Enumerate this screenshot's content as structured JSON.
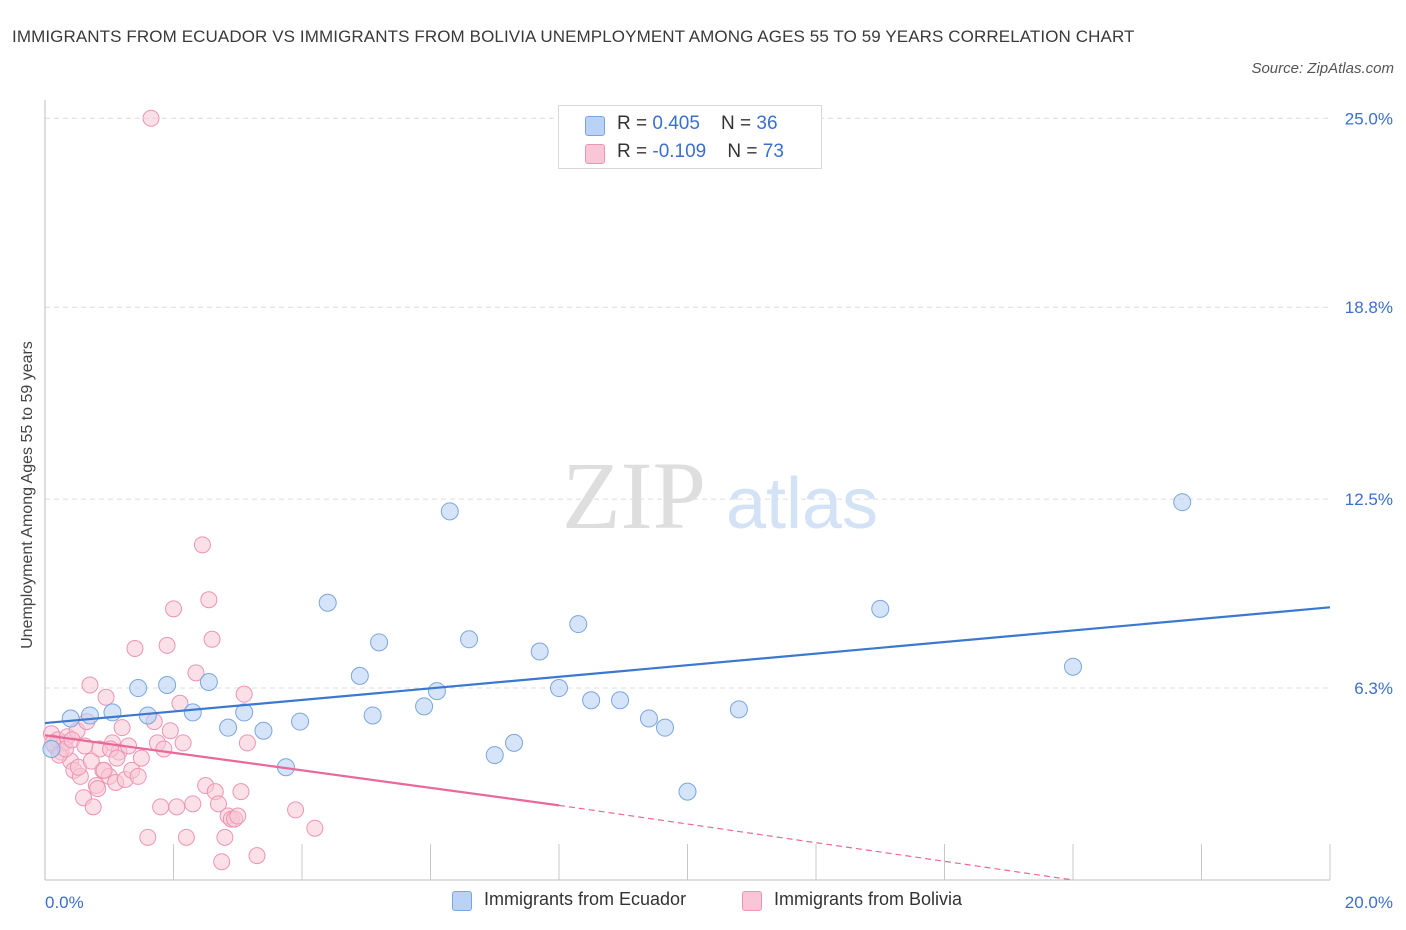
{
  "header": {
    "title": "IMMIGRANTS FROM ECUADOR VS IMMIGRANTS FROM BOLIVIA UNEMPLOYMENT AMONG AGES 55 TO 59 YEARS CORRELATION CHART",
    "source": "Source: ZipAtlas.com"
  },
  "watermark": {
    "zip": "ZIP",
    "atlas": "atlas"
  },
  "colors": {
    "ecuador_fill": "#b9d2f5",
    "ecuador_stroke": "#7aa6e0",
    "ecuador_line": "#3b78d0",
    "bolivia_fill": "#f8c6d6",
    "bolivia_stroke": "#ee94b3",
    "bolivia_line": "#e8699a",
    "tick_text": "#3b6fcf",
    "grid": "#dcdcdc"
  },
  "stats": {
    "ecuador": {
      "r_label": "R = ",
      "r_value": "0.405",
      "n_label": "N = ",
      "n_value": "36"
    },
    "bolivia": {
      "r_label": "R = ",
      "r_value": "-0.109",
      "n_label": "N = ",
      "n_value": "73"
    }
  },
  "chart_data": {
    "type": "scatter",
    "title": "IMMIGRANTS FROM ECUADOR VS IMMIGRANTS FROM BOLIVIA UNEMPLOYMENT AMONG AGES 55 TO 59 YEARS CORRELATION CHART",
    "xlabel": "",
    "ylabel": "Unemployment Among Ages 55 to 59 years",
    "xlim": [
      0,
      20
    ],
    "ylim": [
      0,
      25.6
    ],
    "x_tick_labels": [
      {
        "value": 0,
        "label": "0.0%"
      },
      {
        "value": 20,
        "label": "20.0%"
      }
    ],
    "y_tick_labels": [
      {
        "value": 6.3,
        "label": "6.3%"
      },
      {
        "value": 12.5,
        "label": "12.5%"
      },
      {
        "value": 18.8,
        "label": "18.8%"
      },
      {
        "value": 25.0,
        "label": "25.0%"
      }
    ],
    "x_minor_ticks": [
      2,
      4,
      6,
      8,
      10,
      12,
      14,
      16,
      18,
      20
    ],
    "legend_position": "bottom",
    "series": [
      {
        "name": "Immigrants from Ecuador",
        "points": [
          [
            0.1,
            4.3
          ],
          [
            0.4,
            5.3
          ],
          [
            0.7,
            5.4
          ],
          [
            1.05,
            5.5
          ],
          [
            1.45,
            6.3
          ],
          [
            1.6,
            5.4
          ],
          [
            1.9,
            6.4
          ],
          [
            2.3,
            5.5
          ],
          [
            2.55,
            6.5
          ],
          [
            2.85,
            5.0
          ],
          [
            3.1,
            5.5
          ],
          [
            3.4,
            4.9
          ],
          [
            3.75,
            3.7
          ],
          [
            3.97,
            5.2
          ],
          [
            4.4,
            9.1
          ],
          [
            4.9,
            6.7
          ],
          [
            5.1,
            5.4
          ],
          [
            5.2,
            7.8
          ],
          [
            5.9,
            5.7
          ],
          [
            6.1,
            6.2
          ],
          [
            6.3,
            12.1
          ],
          [
            6.6,
            7.9
          ],
          [
            7.0,
            4.1
          ],
          [
            7.3,
            4.5
          ],
          [
            7.7,
            7.5
          ],
          [
            8.0,
            6.3
          ],
          [
            8.3,
            8.4
          ],
          [
            8.5,
            5.9
          ],
          [
            8.95,
            5.9
          ],
          [
            9.4,
            5.3
          ],
          [
            9.65,
            5.0
          ],
          [
            10.0,
            2.9
          ],
          [
            10.8,
            5.6
          ],
          [
            13.0,
            8.9
          ],
          [
            16.0,
            7.0
          ],
          [
            17.7,
            12.4
          ]
        ],
        "trend": [
          [
            0,
            5.15
          ],
          [
            20,
            8.95
          ]
        ]
      },
      {
        "name": "Immigrants from Bolivia",
        "points": [
          [
            0.1,
            4.8
          ],
          [
            0.15,
            4.4
          ],
          [
            0.2,
            4.6
          ],
          [
            0.25,
            4.2
          ],
          [
            0.3,
            4.5
          ],
          [
            0.35,
            4.7
          ],
          [
            0.4,
            3.9
          ],
          [
            0.45,
            3.6
          ],
          [
            0.5,
            4.9
          ],
          [
            0.55,
            3.4
          ],
          [
            0.6,
            2.7
          ],
          [
            0.65,
            5.2
          ],
          [
            0.7,
            6.4
          ],
          [
            0.75,
            2.4
          ],
          [
            0.8,
            3.1
          ],
          [
            0.85,
            4.3
          ],
          [
            0.9,
            3.6
          ],
          [
            0.95,
            6.0
          ],
          [
            1.0,
            3.4
          ],
          [
            1.05,
            4.5
          ],
          [
            1.1,
            3.2
          ],
          [
            1.15,
            4.2
          ],
          [
            1.2,
            5.0
          ],
          [
            1.25,
            3.3
          ],
          [
            1.3,
            4.4
          ],
          [
            1.35,
            3.6
          ],
          [
            1.4,
            7.6
          ],
          [
            1.45,
            3.4
          ],
          [
            1.5,
            4.0
          ],
          [
            1.6,
            1.4
          ],
          [
            1.7,
            5.2
          ],
          [
            1.75,
            4.5
          ],
          [
            1.8,
            2.4
          ],
          [
            1.85,
            4.3
          ],
          [
            1.9,
            7.7
          ],
          [
            1.95,
            4.9
          ],
          [
            2.0,
            8.9
          ],
          [
            2.05,
            2.4
          ],
          [
            2.1,
            5.8
          ],
          [
            2.15,
            4.5
          ],
          [
            2.2,
            1.4
          ],
          [
            2.3,
            2.5
          ],
          [
            2.35,
            6.8
          ],
          [
            2.45,
            11.0
          ],
          [
            2.5,
            3.1
          ],
          [
            2.55,
            9.2
          ],
          [
            2.6,
            7.9
          ],
          [
            2.65,
            2.9
          ],
          [
            2.7,
            2.5
          ],
          [
            2.75,
            0.6
          ],
          [
            2.8,
            1.4
          ],
          [
            2.85,
            2.1
          ],
          [
            2.9,
            2.0
          ],
          [
            2.95,
            2.0
          ],
          [
            3.0,
            2.1
          ],
          [
            3.05,
            2.9
          ],
          [
            3.1,
            6.1
          ],
          [
            3.15,
            4.5
          ],
          [
            3.3,
            0.8
          ],
          [
            3.9,
            2.3
          ],
          [
            4.2,
            1.7
          ],
          [
            0.12,
            4.5
          ],
          [
            0.22,
            4.1
          ],
          [
            0.32,
            4.3
          ],
          [
            0.42,
            4.6
          ],
          [
            0.52,
            3.7
          ],
          [
            0.62,
            4.4
          ],
          [
            0.72,
            3.9
          ],
          [
            0.82,
            3.0
          ],
          [
            0.92,
            3.6
          ],
          [
            1.02,
            4.3
          ],
          [
            1.12,
            4.0
          ],
          [
            1.65,
            25.0
          ]
        ],
        "trend": [
          [
            0,
            4.75
          ],
          [
            8,
            2.45
          ]
        ],
        "trend_extension": [
          [
            8,
            2.45
          ],
          [
            16,
            0.0
          ]
        ]
      }
    ]
  }
}
